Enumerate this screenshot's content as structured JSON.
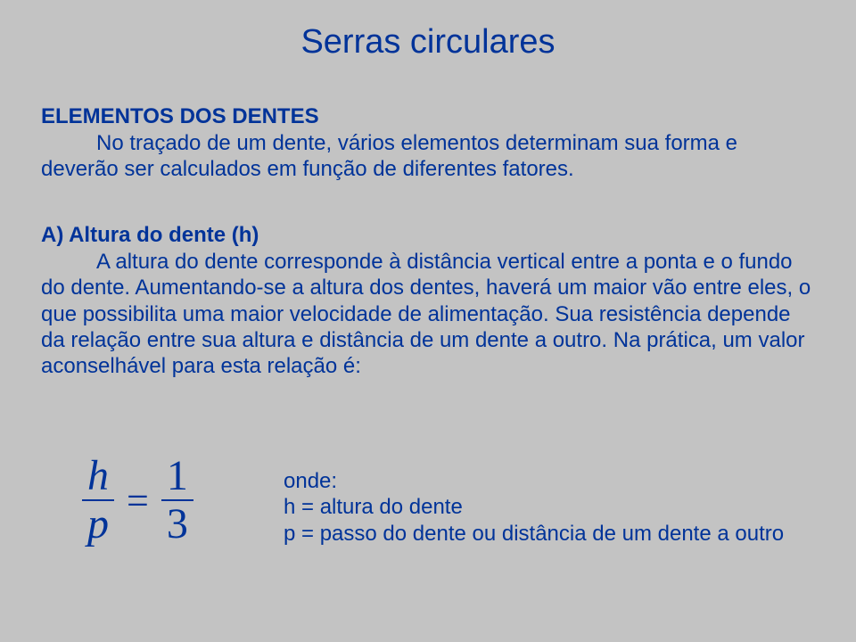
{
  "title": "Serras circulares",
  "section_heading": "ELEMENTOS DOS DENTES",
  "para1": "No traçado de um dente, vários elementos determinam sua forma e deverão ser calculados em função de diferentes fatores.",
  "subheading": "A) Altura do dente (h)",
  "para2": "A altura do dente corresponde à distância vertical entre a ponta e o fundo do dente. Aumentando-se a altura dos dentes, haverá um maior vão entre eles, o que possibilita uma maior velocidade de alimentação. Sua resistência depende da relação entre sua altura e distância de um dente a outro. Na prática, um valor aconselhável para esta relação é:",
  "formula": {
    "left_num": "h",
    "left_den": "p",
    "eq": "=",
    "right_num": "1",
    "right_den": "3"
  },
  "defs": {
    "onde": "onde:",
    "line1": "h = altura do dente",
    "line2": "p = passo do dente ou distância de um dente a outro"
  }
}
